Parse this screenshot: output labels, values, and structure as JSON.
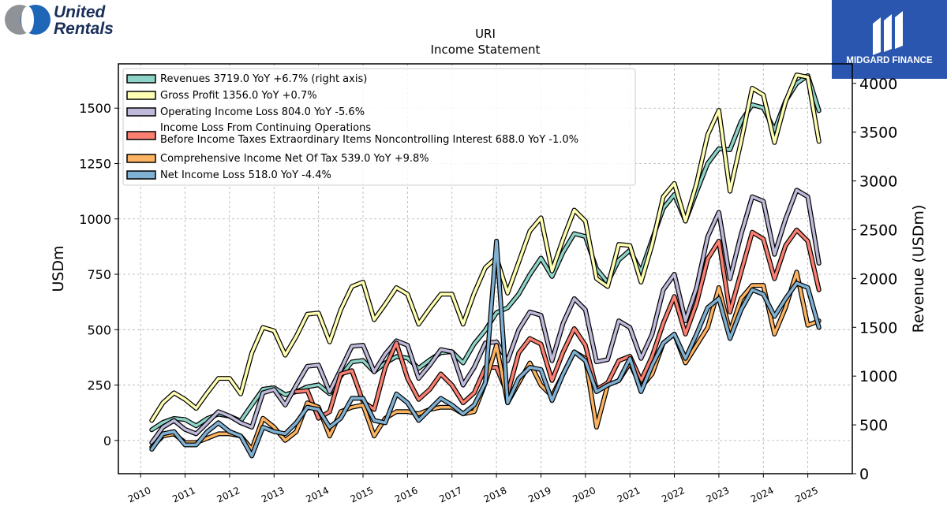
{
  "header": {
    "company_logo_line1": "United",
    "company_logo_line2": "Rentals",
    "brand_name": "MIDGARD FINANCE"
  },
  "chart_data": {
    "type": "line",
    "title": "URI",
    "subtitle": "Income Statement",
    "ylabel": "USDm",
    "ylabel_right": "Revenue (USDm)",
    "ylim": [
      -150,
      1700
    ],
    "ylim_right": [
      0,
      4200
    ],
    "yticks": [
      0,
      250,
      500,
      750,
      1000,
      1250,
      1500
    ],
    "yticks_right": [
      0,
      500,
      1000,
      1500,
      2000,
      2500,
      3000,
      3500,
      4000
    ],
    "xlim": [
      2009.5,
      2026.0
    ],
    "xticks": [
      "2010",
      "2011",
      "2012",
      "2013",
      "2014",
      "2015",
      "2016",
      "2017",
      "2018",
      "2019",
      "2020",
      "2021",
      "2022",
      "2023",
      "2024",
      "2025"
    ],
    "grid": true,
    "legend_position": "top-left",
    "x": [
      2010.25,
      2010.5,
      2010.75,
      2011.0,
      2011.25,
      2011.5,
      2011.75,
      2012.0,
      2012.25,
      2012.5,
      2012.75,
      2013.0,
      2013.25,
      2013.5,
      2013.75,
      2014.0,
      2014.25,
      2014.5,
      2014.75,
      2015.0,
      2015.25,
      2015.5,
      2015.75,
      2016.0,
      2016.25,
      2016.5,
      2016.75,
      2017.0,
      2017.25,
      2017.5,
      2017.75,
      2018.0,
      2018.25,
      2018.5,
      2018.75,
      2019.0,
      2019.25,
      2019.5,
      2019.75,
      2020.0,
      2020.25,
      2020.5,
      2020.75,
      2021.0,
      2021.25,
      2021.5,
      2021.75,
      2022.0,
      2022.25,
      2022.5,
      2022.75,
      2023.0,
      2023.25,
      2023.5,
      2023.75,
      2024.0,
      2024.25,
      2024.5,
      2024.75,
      2025.0,
      2025.25
    ],
    "series": [
      {
        "name": "Revenues  3719.0 YoY +6.7% (right axis)",
        "axis": "right",
        "color": "#8dd3c7",
        "values": [
          450,
          525,
          565,
          555,
          490,
          565,
          610,
          590,
          540,
          705,
          865,
          880,
          810,
          840,
          890,
          910,
          820,
          1000,
          1145,
          1160,
          1045,
          1135,
          1200,
          1185,
          1080,
          1165,
          1240,
          1250,
          1135,
          1330,
          1470,
          1650,
          1700,
          1840,
          2040,
          2210,
          2020,
          2270,
          2460,
          2430,
          2100,
          1960,
          2190,
          2290,
          2070,
          2400,
          2720,
          2860,
          2590,
          2890,
          3180,
          3330,
          3320,
          3610,
          3780,
          3750,
          3520,
          3820,
          4000,
          4080,
          3720
        ]
      },
      {
        "name": "Gross Profit  1356.0 YoY +0.7%",
        "axis": "left",
        "color": "#ffffb3",
        "values": [
          90,
          170,
          215,
          185,
          145,
          215,
          280,
          280,
          210,
          395,
          510,
          495,
          385,
          470,
          570,
          575,
          445,
          590,
          695,
          715,
          545,
          615,
          690,
          660,
          525,
          595,
          660,
          660,
          525,
          665,
          780,
          825,
          665,
          805,
          945,
          1005,
          765,
          910,
          1040,
          990,
          730,
          695,
          885,
          880,
          715,
          885,
          1100,
          1160,
          990,
          1160,
          1380,
          1490,
          1125,
          1350,
          1590,
          1560,
          1345,
          1530,
          1650,
          1640,
          1350
        ]
      },
      {
        "name": "Operating Income Loss  804.0 YoY -5.6%",
        "axis": "left",
        "color": "#bebada",
        "values": [
          -10,
          60,
          90,
          50,
          30,
          80,
          130,
          110,
          80,
          60,
          215,
          230,
          160,
          250,
          335,
          340,
          220,
          320,
          425,
          430,
          310,
          390,
          450,
          430,
          280,
          340,
          410,
          400,
          250,
          330,
          440,
          445,
          360,
          500,
          580,
          565,
          360,
          530,
          640,
          590,
          355,
          365,
          540,
          510,
          370,
          480,
          680,
          750,
          540,
          690,
          920,
          1030,
          730,
          930,
          1100,
          1080,
          840,
          1000,
          1130,
          1100,
          800
        ]
      },
      {
        "name": "Income Loss From Continuing Operations\nBefore Income Taxes Extraordinary Items Noncontrolling Interest  688.0 YoY -1.0%",
        "axis": "left",
        "color": "#fb8072",
        "values": [
          null,
          null,
          null,
          null,
          null,
          null,
          null,
          null,
          null,
          null,
          null,
          null,
          null,
          220,
          225,
          100,
          130,
          300,
          315,
          175,
          140,
          330,
          440,
          280,
          185,
          230,
          300,
          250,
          170,
          215,
          330,
          330,
          210,
          395,
          460,
          435,
          270,
          400,
          505,
          430,
          230,
          260,
          360,
          380,
          270,
          380,
          530,
          650,
          480,
          620,
          820,
          900,
          580,
          760,
          940,
          910,
          730,
          880,
          950,
          900,
          680
        ]
      },
      {
        "name": "Comprehensive Income Net Of Tax  539.0 YoY +9.8%",
        "axis": "left",
        "color": "#fdb462",
        "values": [
          -30,
          20,
          30,
          -10,
          -10,
          10,
          30,
          30,
          20,
          -40,
          100,
          60,
          0,
          40,
          170,
          150,
          20,
          130,
          150,
          160,
          20,
          100,
          130,
          130,
          120,
          140,
          150,
          150,
          120,
          130,
          260,
          430,
          170,
          260,
          350,
          250,
          200,
          300,
          400,
          370,
          60,
          250,
          270,
          350,
          240,
          300,
          440,
          480,
          350,
          430,
          510,
          690,
          490,
          640,
          700,
          700,
          480,
          600,
          760,
          520,
          540
        ]
      },
      {
        "name": "Net Income Loss  518.0 YoY -4.4%",
        "axis": "left",
        "color": "#80b1d3",
        "values": [
          -40,
          30,
          40,
          -20,
          -20,
          40,
          80,
          40,
          20,
          -70,
          60,
          40,
          30,
          80,
          150,
          140,
          60,
          100,
          190,
          190,
          90,
          80,
          210,
          170,
          90,
          140,
          190,
          160,
          120,
          160,
          260,
          900,
          170,
          280,
          330,
          320,
          180,
          300,
          400,
          360,
          220,
          250,
          270,
          370,
          220,
          340,
          440,
          480,
          370,
          480,
          600,
          640,
          460,
          590,
          680,
          660,
          560,
          640,
          710,
          690,
          510
        ]
      }
    ]
  }
}
